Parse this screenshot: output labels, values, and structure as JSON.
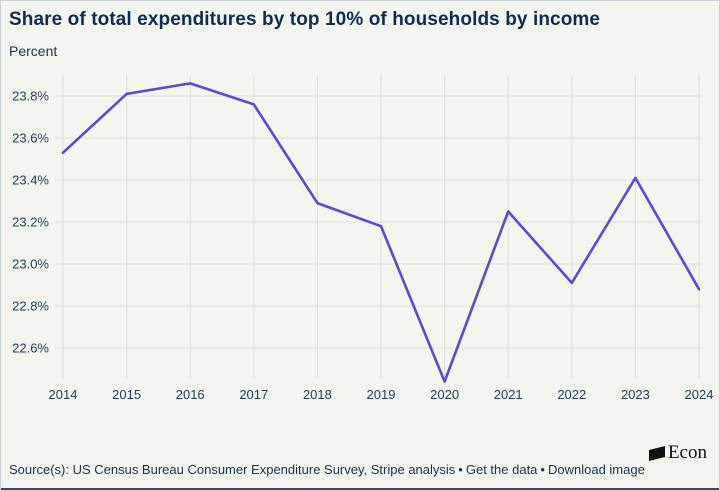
{
  "header": {
    "title": "Share of total expenditures by top 10% of households by income",
    "subtitle": "Percent"
  },
  "chart_data": {
    "type": "line",
    "title": "Share of total expenditures by top 10% of households by income",
    "ylabel": "Percent",
    "x": [
      2014,
      2015,
      2016,
      2017,
      2018,
      2019,
      2020,
      2021,
      2022,
      2023,
      2024
    ],
    "values": [
      23.53,
      23.81,
      23.86,
      23.76,
      23.29,
      23.18,
      22.44,
      23.25,
      22.91,
      23.41,
      22.88
    ],
    "xlim": [
      2014,
      2024
    ],
    "ylim": [
      22.44,
      23.9
    ],
    "yticks": [
      23.8,
      23.6,
      23.4,
      23.2,
      23.0,
      22.8,
      22.6
    ],
    "ytick_suffix": "%",
    "grid": true,
    "legend": "none",
    "line_color": "#5b48e0"
  },
  "footer": {
    "source": "Source(s): US Census Bureau Consumer Expenditure Survey, Stripe analysis",
    "separator": "•",
    "links": [
      "Get the data",
      "Download image"
    ],
    "logo_text": "Econ"
  },
  "colors": {
    "background": "#f5f5ef",
    "title_text": "#0d2c55",
    "body_text": "#14335f",
    "tick_text": "#243d5e",
    "gridline": "#e0e0da",
    "line": "#5b48e0",
    "logo": "#111111",
    "bottom_bar": "#2c4a72"
  }
}
